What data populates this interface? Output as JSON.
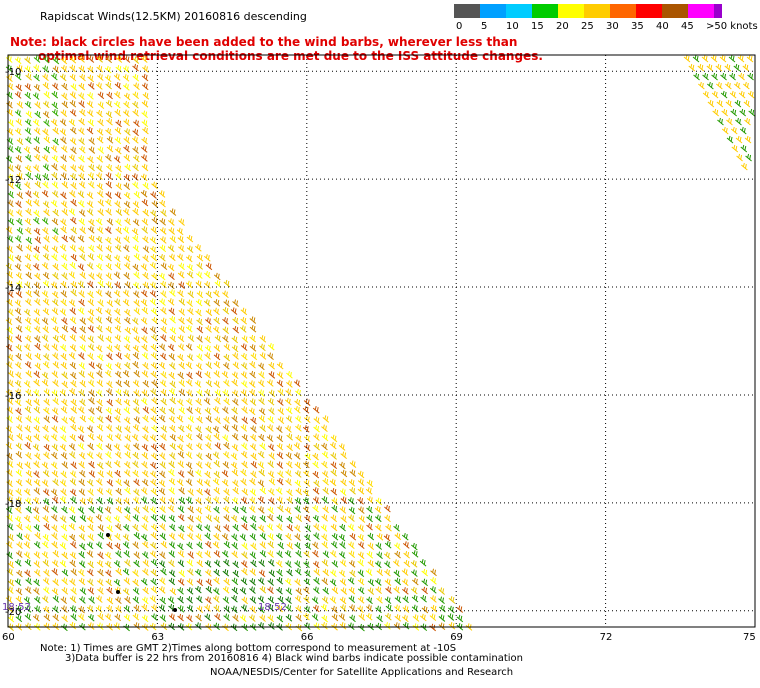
{
  "title": "Rapidscat Winds(12.5KM) 20160816 descending",
  "note": {
    "line1": "Note: black circles have been added to the wind barbs, wherever less than",
    "line2": "optimal wind retrieval conditions are met due to the ISS attitude changes."
  },
  "colorbar": {
    "labels": [
      "0",
      "5",
      "10",
      "15",
      "20",
      "25",
      "30",
      "35",
      "40",
      "45",
      ">50 knots"
    ],
    "colors": [
      "#555555",
      "#00a0ff",
      "#00ccff",
      "#00cc00",
      "#ffff00",
      "#ffcc00",
      "#ff6600",
      "#ff0000",
      "#aa5500",
      "#ff00ff",
      "#9900cc"
    ]
  },
  "map": {
    "lat_labels": [
      "-10",
      "-12",
      "-14",
      "-16",
      "-18",
      "-20"
    ],
    "lon_labels": [
      "60",
      "63",
      "66",
      "69",
      "72",
      "75"
    ],
    "time_labels": [
      "18:52",
      "18:52"
    ]
  },
  "footer": {
    "line1": "Note: 1) Times are GMT 2)Times along bottom correspond to measurement at -10S",
    "line2": "3)Data buffer is 22 hrs from 20160816 4) Black wind barbs indicate possible contamination",
    "line3": "NOAA/NESDIS/Center for Satellite Applications and Research"
  }
}
